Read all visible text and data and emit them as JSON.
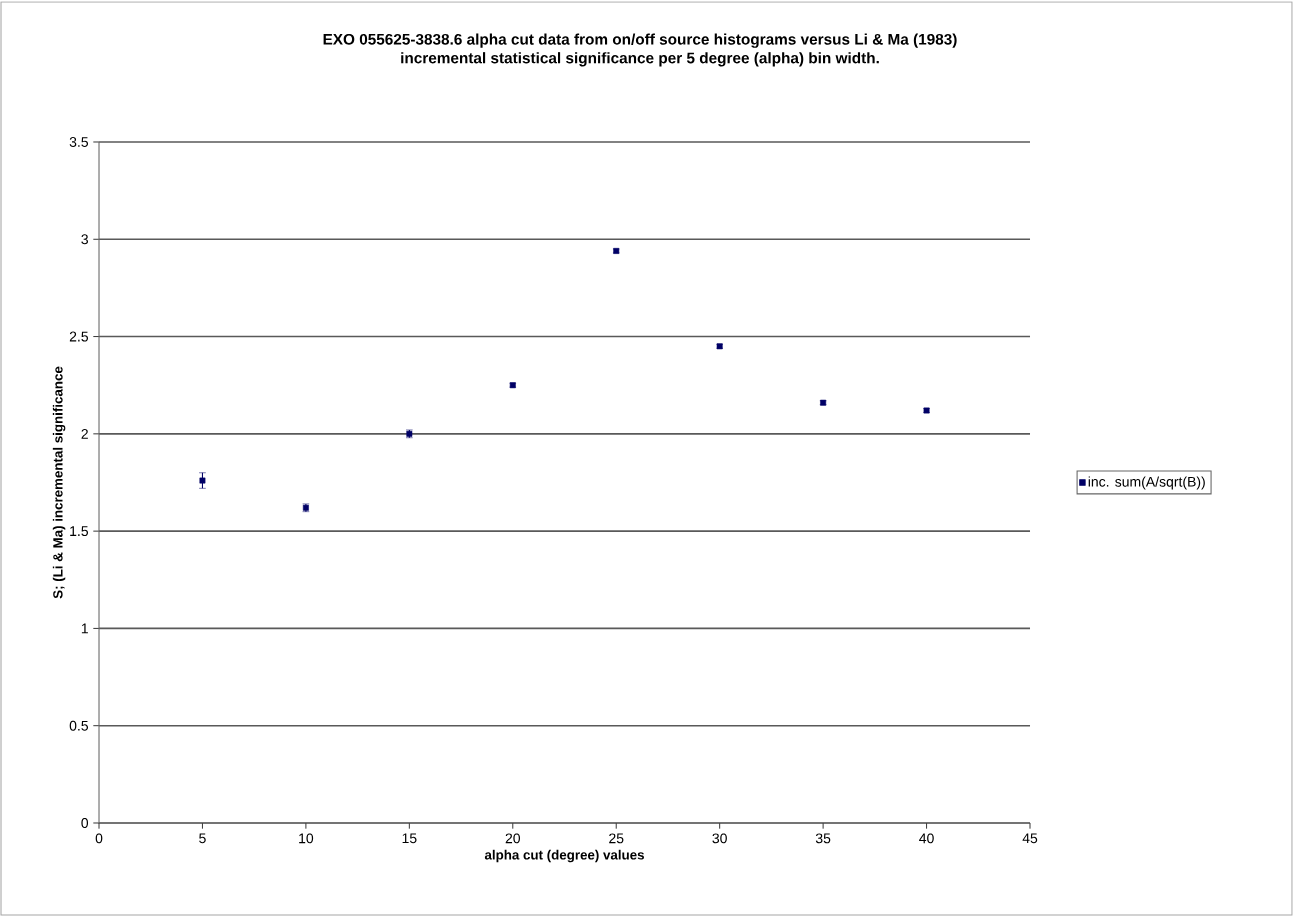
{
  "chart_data": {
    "type": "scatter",
    "title": "EXO 055625-3838.6 alpha cut data from on/off source histograms versus Li & Ma (1983)",
    "subtitle": "incremental statistical significance per 5 degree (alpha) bin width.",
    "xlabel": "alpha cut (degree) values",
    "ylabel": "S; (Li & Ma) incremental significance",
    "x": [
      5,
      10,
      15,
      20,
      25,
      30,
      35,
      40
    ],
    "series": [
      {
        "name": "inc. sum(A/sqrt(B))",
        "color": "#000066",
        "values": [
          1.76,
          1.62,
          2.0,
          2.25,
          2.94,
          2.45,
          2.16,
          2.12
        ],
        "errors": [
          0.04,
          0.02,
          0.02,
          0.01,
          0.01,
          0.01,
          0.01,
          0.01
        ]
      }
    ],
    "xlim": [
      0,
      45
    ],
    "xticks": [
      0,
      5,
      10,
      15,
      20,
      25,
      30,
      35,
      40,
      45
    ],
    "ylim": [
      0,
      3.5
    ],
    "yticks": [
      0,
      0.5,
      1,
      1.5,
      2,
      2.5,
      3,
      3.5
    ],
    "grid": "y",
    "legend": "right",
    "marker": "square"
  }
}
